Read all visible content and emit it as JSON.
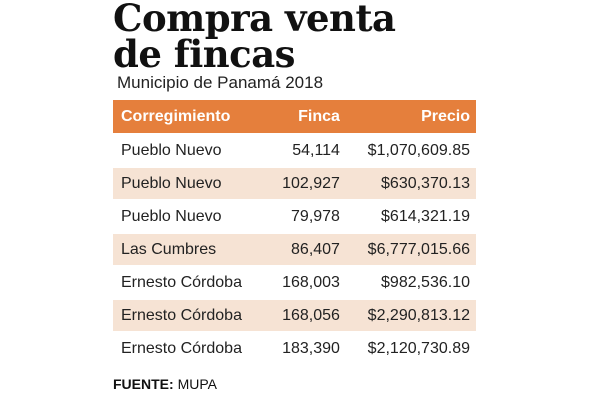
{
  "title_line1": "Compra venta",
  "title_line2": "de fincas",
  "subtitle": "Municipio de Panamá 2018",
  "chart_data": {
    "type": "table",
    "columns": [
      "Corregimiento",
      "Finca",
      "Precio"
    ],
    "rows": [
      [
        "Pueblo Nuevo",
        "54,114",
        "$1,070,609.85"
      ],
      [
        "Pueblo Nuevo",
        "102,927",
        "$630,370.13"
      ],
      [
        "Pueblo Nuevo",
        "79,978",
        "$614,321.19"
      ],
      [
        "Las Cumbres",
        "86,407",
        "$6,777,015.66"
      ],
      [
        "Ernesto Córdoba",
        "168,003",
        "$982,536.10"
      ],
      [
        "Ernesto Córdoba",
        "168,056",
        "$2,290,813.12"
      ],
      [
        "Ernesto Córdoba",
        "183,390",
        "$2,120,730.89"
      ]
    ]
  },
  "source_label": "FUENTE:",
  "source_value": "MUPA",
  "colors": {
    "header_bg": "#e57f3c",
    "alt_row_bg": "#f6e3d4"
  }
}
